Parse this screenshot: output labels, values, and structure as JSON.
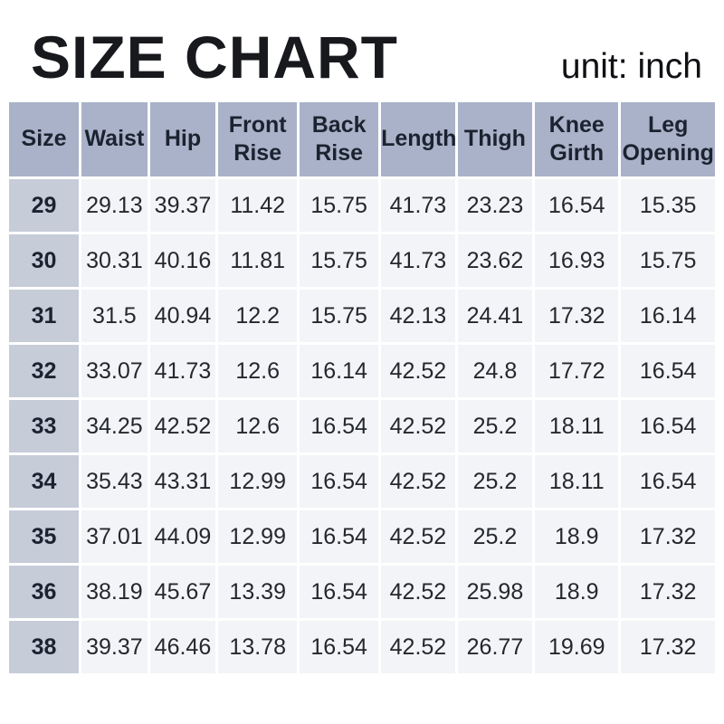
{
  "title": "SIZE CHART",
  "unit_label": "unit: inch",
  "colors": {
    "header_bg": "#a9b2c8",
    "size_col_bg": "#c7ccd9",
    "cell_bg": "#f3f4f7",
    "grid": "#ffffff",
    "text": "#1b2230"
  },
  "chart_data": {
    "type": "table",
    "title": "SIZE CHART",
    "unit": "inch",
    "columns": [
      "Size",
      "Waist",
      "Hip",
      "Front Rise",
      "Back Rise",
      "Length",
      "Thigh",
      "Knee Girth",
      "Leg Opening"
    ],
    "rows": [
      [
        "29",
        "29.13",
        "39.37",
        "11.42",
        "15.75",
        "41.73",
        "23.23",
        "16.54",
        "15.35"
      ],
      [
        "30",
        "30.31",
        "40.16",
        "11.81",
        "15.75",
        "41.73",
        "23.62",
        "16.93",
        "15.75"
      ],
      [
        "31",
        "31.5",
        "40.94",
        "12.2",
        "15.75",
        "42.13",
        "24.41",
        "17.32",
        "16.14"
      ],
      [
        "32",
        "33.07",
        "41.73",
        "12.6",
        "16.14",
        "42.52",
        "24.8",
        "17.72",
        "16.54"
      ],
      [
        "33",
        "34.25",
        "42.52",
        "12.6",
        "16.54",
        "42.52",
        "25.2",
        "18.11",
        "16.54"
      ],
      [
        "34",
        "35.43",
        "43.31",
        "12.99",
        "16.54",
        "42.52",
        "25.2",
        "18.11",
        "16.54"
      ],
      [
        "35",
        "37.01",
        "44.09",
        "12.99",
        "16.54",
        "42.52",
        "25.2",
        "18.9",
        "17.32"
      ],
      [
        "36",
        "38.19",
        "45.67",
        "13.39",
        "16.54",
        "42.52",
        "25.98",
        "18.9",
        "17.32"
      ],
      [
        "38",
        "39.37",
        "46.46",
        "13.78",
        "16.54",
        "42.52",
        "26.77",
        "19.69",
        "17.32"
      ]
    ]
  }
}
